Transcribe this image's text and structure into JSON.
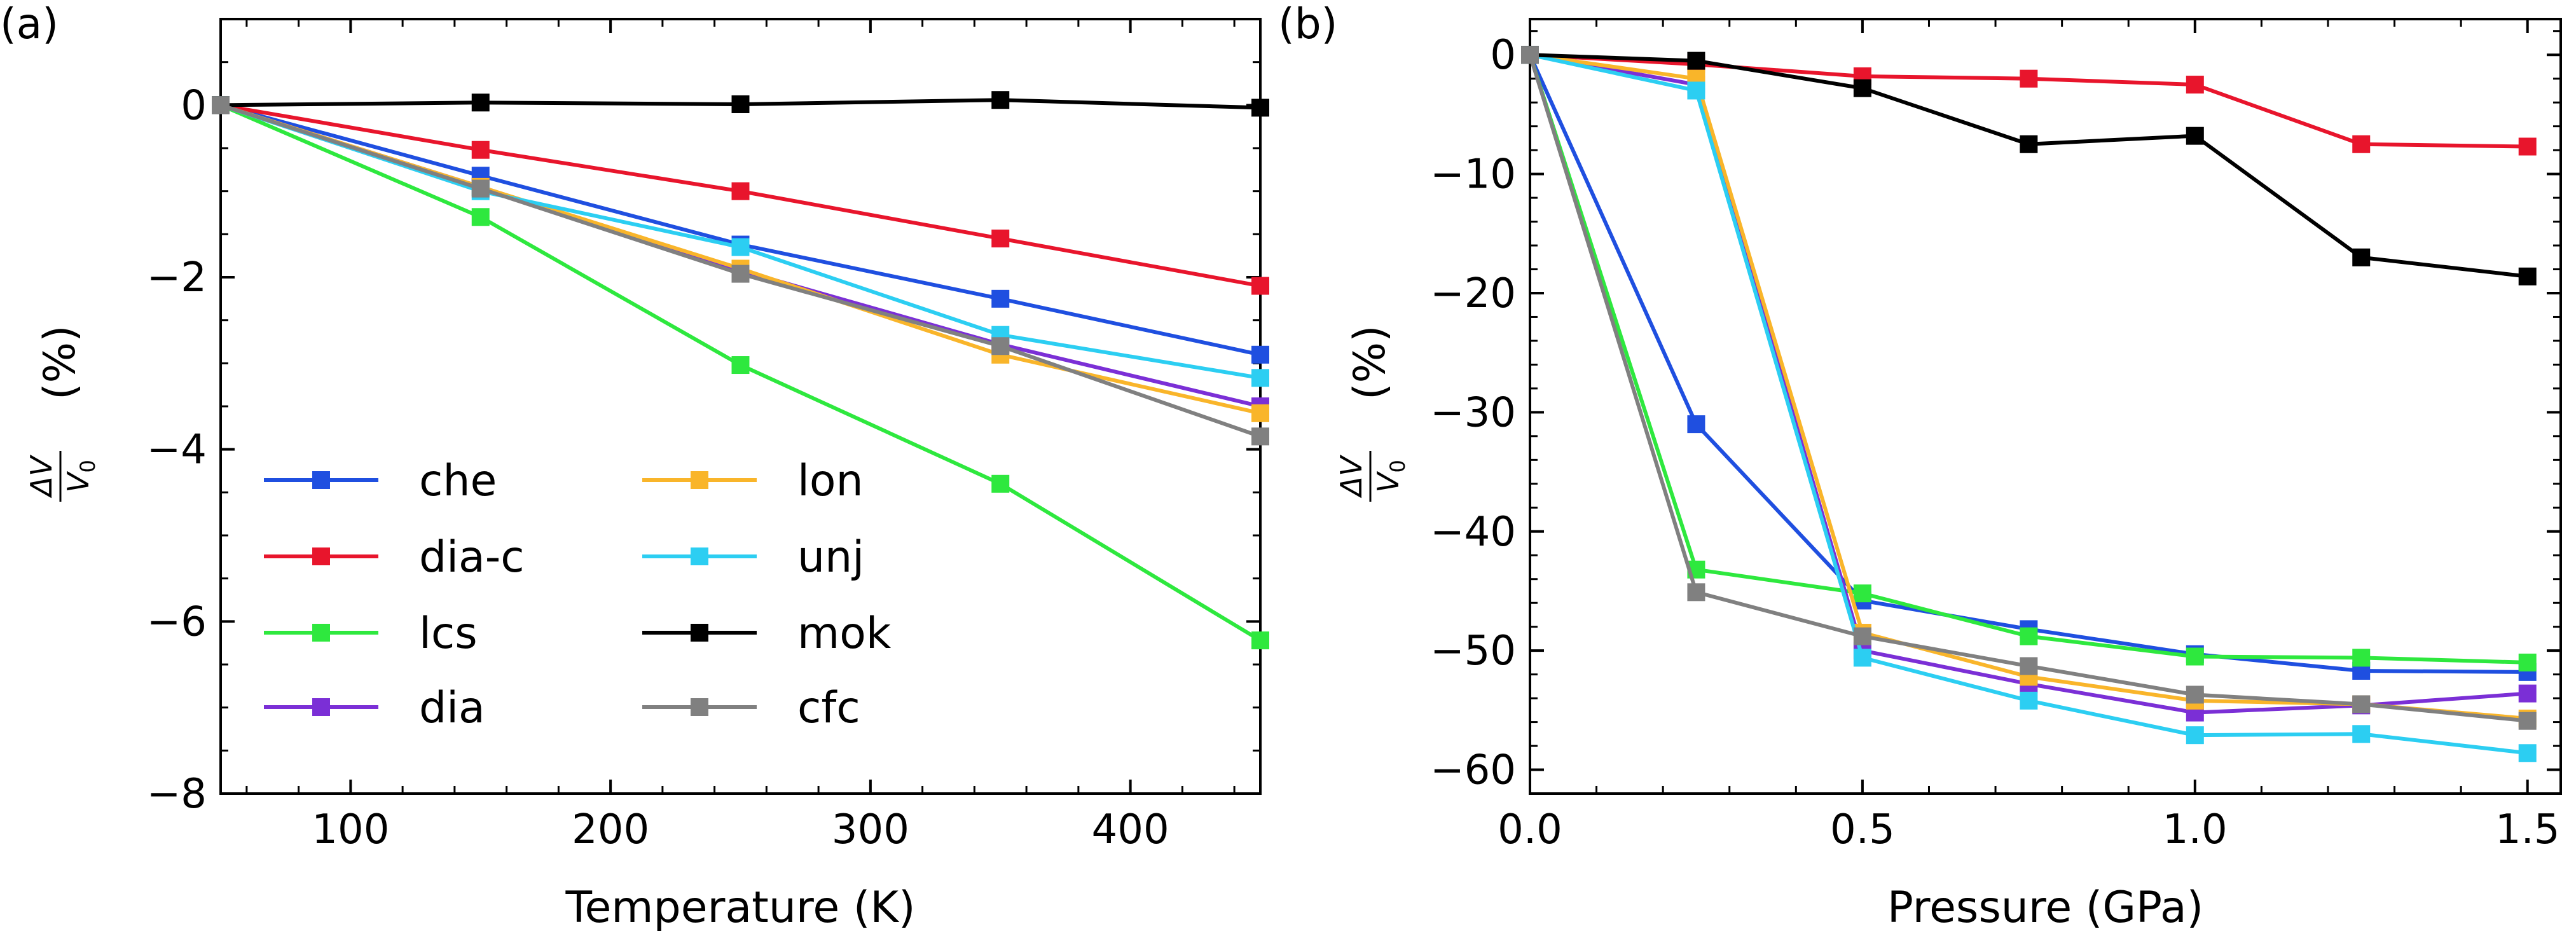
{
  "chart_data": [
    {
      "panel_label": "(a)",
      "type": "line",
      "xlabel": "Temperature (K)",
      "ylabel": "(%)",
      "ylabel_fraction": {
        "numerator": "ΔV",
        "denominator": "V",
        "denominator_subscript": "0"
      },
      "xlim": [
        50,
        450
      ],
      "ylim": [
        -8,
        1
      ],
      "xticks": [
        100,
        200,
        300,
        400
      ],
      "xtick_labels": [
        "100",
        "200",
        "300",
        "400"
      ],
      "yticks": [
        -8,
        -6,
        -4,
        -2,
        0
      ],
      "ytick_labels": [
        "−8",
        "−6",
        "−4",
        "−2",
        "0"
      ],
      "x": [
        50,
        150,
        250,
        350,
        450
      ],
      "series": [
        {
          "name": "che",
          "color": "#1f4fe0",
          "values": [
            0,
            -0.82,
            -1.62,
            -2.25,
            -2.9
          ]
        },
        {
          "name": "dia-c",
          "color": "#e8152c",
          "values": [
            0,
            -0.52,
            -1.0,
            -1.55,
            -2.1
          ]
        },
        {
          "name": "lcs",
          "color": "#2ee83e",
          "values": [
            0,
            -1.3,
            -3.02,
            -4.4,
            -6.22
          ]
        },
        {
          "name": "dia",
          "color": "#7b2fd6",
          "values": [
            0,
            -0.95,
            -1.92,
            -2.78,
            -3.5
          ]
        },
        {
          "name": "lon",
          "color": "#f9b52a",
          "values": [
            0,
            -0.95,
            -1.9,
            -2.9,
            -3.58
          ]
        },
        {
          "name": "unj",
          "color": "#2ccef2",
          "values": [
            0,
            -1.0,
            -1.65,
            -2.67,
            -3.17
          ]
        },
        {
          "name": "mok",
          "color": "#000000",
          "values": [
            0,
            0.03,
            0.01,
            0.06,
            -0.03
          ]
        },
        {
          "name": "cfc",
          "color": "#808080",
          "values": [
            0,
            -0.97,
            -1.96,
            -2.8,
            -3.85
          ]
        }
      ],
      "legend": {
        "placement": "lower-left",
        "columns": 2
      }
    },
    {
      "panel_label": "(b)",
      "type": "line",
      "xlabel": "Pressure (GPa)",
      "ylabel": "(%)",
      "ylabel_fraction": {
        "numerator": "ΔV",
        "denominator": "V",
        "denominator_subscript": "0"
      },
      "xlim": [
        0,
        1.55
      ],
      "ylim": [
        -62,
        3
      ],
      "xticks": [
        0,
        0.5,
        1.0,
        1.5
      ],
      "xtick_labels": [
        "0.0",
        "0.5",
        "1.0",
        "1.5"
      ],
      "yticks": [
        -60,
        -50,
        -40,
        -30,
        -20,
        -10,
        0
      ],
      "ytick_labels": [
        "−60",
        "−50",
        "−40",
        "−30",
        "−20",
        "−10",
        "0"
      ],
      "x": [
        0,
        0.25,
        0.5,
        0.75,
        1.0,
        1.25,
        1.5
      ],
      "series": [
        {
          "name": "che",
          "color": "#1f4fe0",
          "values": [
            0,
            -31,
            -45.8,
            -48.2,
            -50.3,
            -51.7,
            -51.8
          ]
        },
        {
          "name": "dia-c",
          "color": "#e8152c",
          "values": [
            0,
            -0.8,
            -1.8,
            -2.0,
            -2.5,
            -7.5,
            -7.7
          ]
        },
        {
          "name": "lcs",
          "color": "#2ee83e",
          "values": [
            0,
            -43.2,
            -45.2,
            -48.8,
            -50.5,
            -50.6,
            -51.0
          ]
        },
        {
          "name": "dia",
          "color": "#7b2fd6",
          "values": [
            0,
            -2.5,
            -50.0,
            -52.8,
            -55.2,
            -54.6,
            -53.6
          ]
        },
        {
          "name": "lon",
          "color": "#f9b52a",
          "values": [
            0,
            -2.0,
            -48.5,
            -52.2,
            -54.2,
            -54.5,
            -55.7
          ]
        },
        {
          "name": "unj",
          "color": "#2ccef2",
          "values": [
            0,
            -3.0,
            -50.6,
            -54.2,
            -57.1,
            -57.0,
            -58.6
          ]
        },
        {
          "name": "mok",
          "color": "#000000",
          "values": [
            0,
            -0.5,
            -2.8,
            -7.5,
            -6.8,
            -17.0,
            -18.6
          ]
        },
        {
          "name": "cfc",
          "color": "#808080",
          "values": [
            0,
            -45.1,
            -48.8,
            -51.3,
            -53.7,
            -54.5,
            -55.9
          ]
        }
      ]
    }
  ]
}
